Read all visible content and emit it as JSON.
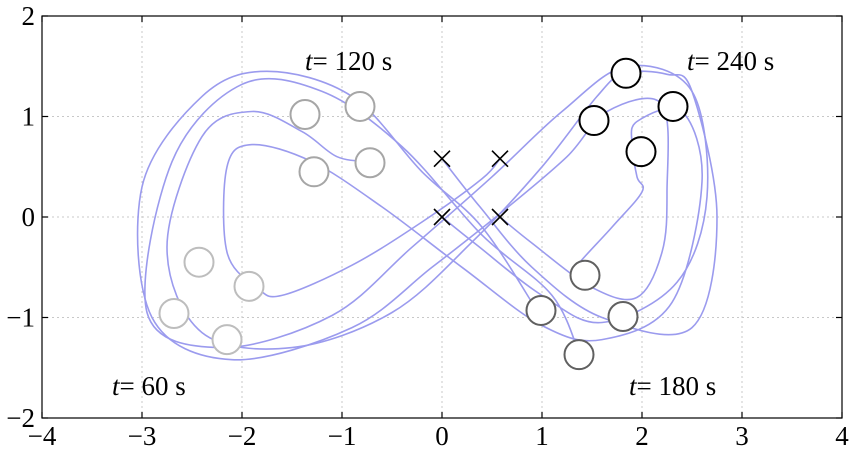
{
  "chart_data": {
    "type": "scatter",
    "title": "",
    "xlabel": "",
    "ylabel": "",
    "xlim": [
      -4,
      4
    ],
    "ylim": [
      -2,
      2
    ],
    "xticks": [
      -4,
      -3,
      -2,
      -1,
      0,
      1,
      2,
      3,
      4
    ],
    "yticks": [
      -2,
      -1,
      0,
      1,
      2
    ],
    "xtick_labels": [
      "−4",
      "−3",
      "−2",
      "−1",
      "0",
      "1",
      "2",
      "3",
      "4"
    ],
    "ytick_labels": [
      "−2",
      "−1",
      "0",
      "1",
      "2"
    ],
    "grid": true,
    "colors": {
      "trajectory": "#9b9bee",
      "marker_t60": "#bdbdbd",
      "marker_t120": "#a6a6a6",
      "marker_t180": "#606060",
      "marker_t240": "#000000"
    },
    "trajectories": [
      [
        [
          0.0,
          0.0
        ],
        [
          0.35,
          -0.28
        ],
        [
          1.0,
          -0.78
        ],
        [
          1.6,
          -1.05
        ],
        [
          2.35,
          -0.65
        ],
        [
          2.65,
          0.2
        ],
        [
          2.5,
          1.25
        ],
        [
          1.85,
          1.5
        ],
        [
          1.2,
          1.05
        ],
        [
          0.5,
          0.4
        ],
        [
          -0.3,
          -0.3
        ],
        [
          -1.1,
          -0.98
        ],
        [
          -2.2,
          -1.3
        ],
        [
          -2.95,
          -0.95
        ],
        [
          -2.7,
          0.55
        ],
        [
          -2.0,
          1.32
        ],
        [
          -1.2,
          1.25
        ],
        [
          -0.4,
          0.7
        ],
        [
          0.4,
          -0.18
        ],
        [
          1.1,
          -0.78
        ],
        [
          1.38,
          -1.38
        ]
      ],
      [
        [
          0.58,
          0.0
        ],
        [
          0.9,
          -0.26
        ],
        [
          1.5,
          -0.7
        ],
        [
          1.95,
          -0.8
        ],
        [
          2.2,
          -0.35
        ],
        [
          2.25,
          0.25
        ],
        [
          2.2,
          1.12
        ],
        [
          1.65,
          1.05
        ],
        [
          1.25,
          0.6
        ],
        [
          0.6,
          0.05
        ],
        [
          -0.1,
          -0.5
        ],
        [
          -0.9,
          -1.1
        ],
        [
          -2.1,
          -1.42
        ],
        [
          -2.9,
          -1.0
        ],
        [
          -3.0,
          0.3
        ],
        [
          -2.4,
          1.2
        ],
        [
          -1.75,
          1.45
        ],
        [
          -0.9,
          1.2
        ],
        [
          -0.2,
          0.45
        ],
        [
          0.4,
          -0.1
        ],
        [
          0.95,
          -0.93
        ]
      ],
      [
        [
          0.0,
          0.58
        ],
        [
          0.38,
          0.1
        ],
        [
          0.9,
          -0.5
        ],
        [
          1.6,
          -1.0
        ],
        [
          2.5,
          -1.1
        ],
        [
          2.75,
          0.0
        ],
        [
          2.5,
          1.25
        ],
        [
          2.25,
          1.42
        ],
        [
          1.82,
          1.43
        ],
        [
          1.55,
          1.2
        ],
        [
          1.0,
          0.5
        ],
        [
          0.3,
          -0.25
        ],
        [
          -0.5,
          -0.95
        ],
        [
          -1.5,
          -1.3
        ],
        [
          -2.4,
          -1.15
        ],
        [
          -2.75,
          -0.3
        ],
        [
          -2.4,
          0.8
        ],
        [
          -1.9,
          1.05
        ],
        [
          -1.4,
          0.85
        ],
        [
          -1.05,
          0.6
        ],
        [
          -0.72,
          0.55
        ]
      ],
      [
        [
          0.58,
          0.58
        ],
        [
          0.4,
          0.38
        ],
        [
          -0.2,
          -0.05
        ],
        [
          -0.9,
          -0.48
        ],
        [
          -1.6,
          -0.78
        ],
        [
          -1.85,
          -0.7
        ],
        [
          -2.15,
          -0.35
        ],
        [
          -2.15,
          0.5
        ],
        [
          -1.9,
          0.72
        ],
        [
          -1.3,
          0.55
        ],
        [
          -0.6,
          0.1
        ],
        [
          0.2,
          -0.5
        ],
        [
          1.0,
          -1.08
        ],
        [
          1.6,
          -1.22
        ],
        [
          2.3,
          -0.85
        ],
        [
          2.6,
          0.35
        ],
        [
          2.4,
          1.05
        ],
        [
          1.95,
          0.95
        ],
        [
          1.9,
          0.72
        ],
        [
          1.95,
          0.4
        ],
        [
          2.0,
          0.25
        ],
        [
          1.7,
          -0.1
        ],
        [
          1.3,
          -0.55
        ],
        [
          1.45,
          -0.58
        ]
      ]
    ],
    "start_points": [
      [
        0.0,
        0.0
      ],
      [
        0.58,
        0.0
      ],
      [
        0.0,
        0.58
      ],
      [
        0.58,
        0.58
      ]
    ],
    "marker_groups": [
      {
        "time": "t = 60 s",
        "color_key": "marker_t60",
        "points": [
          [
            -2.43,
            -0.45
          ],
          [
            -2.68,
            -0.96
          ],
          [
            -2.15,
            -1.22
          ],
          [
            -1.93,
            -0.69
          ]
        ]
      },
      {
        "time": "t = 120 s",
        "color_key": "marker_t120",
        "points": [
          [
            -1.37,
            1.02
          ],
          [
            -0.82,
            1.1
          ],
          [
            -1.28,
            0.45
          ],
          [
            -0.72,
            0.54
          ]
        ]
      },
      {
        "time": "t = 180 s",
        "color_key": "marker_t180",
        "points": [
          [
            0.99,
            -0.93
          ],
          [
            1.43,
            -0.58
          ],
          [
            1.37,
            -1.37
          ],
          [
            1.81,
            -0.99
          ]
        ]
      },
      {
        "time": "t = 240 s",
        "color_key": "marker_t240",
        "points": [
          [
            1.84,
            1.43
          ],
          [
            1.52,
            0.96
          ],
          [
            2.31,
            1.1
          ],
          [
            1.99,
            0.65
          ]
        ]
      }
    ],
    "annotations": [
      {
        "var": "t",
        "text": "= 120 s",
        "at": [
          -1.37,
          1.55
        ]
      },
      {
        "var": "t",
        "text": "= 240 s",
        "at": [
          2.45,
          1.55
        ]
      },
      {
        "var": "t",
        "text": "= 60 s",
        "at": [
          -3.3,
          -1.68
        ]
      },
      {
        "var": "t",
        "text": "= 180 s",
        "at": [
          1.87,
          -1.68
        ]
      }
    ]
  }
}
